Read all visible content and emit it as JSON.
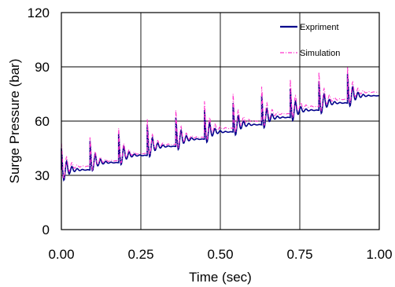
{
  "chart_data": {
    "type": "line",
    "xlabel": "Time (sec)",
    "ylabel": "Surge Pressure (bar)",
    "xlim": [
      0.0,
      1.0
    ],
    "ylim": [
      0,
      120
    ],
    "x_ticks": [
      "0.00",
      "0.25",
      "0.50",
      "0.75",
      "1.00"
    ],
    "y_ticks": [
      "0",
      "30",
      "60",
      "90",
      "120"
    ],
    "grid": true,
    "legend_position": "top-right",
    "series": [
      {
        "name": "Expriment",
        "color": "#00008b",
        "style": "solid",
        "steps": [
          {
            "t": 0.0,
            "steady": 33,
            "peak": 45,
            "trough": 24
          },
          {
            "t": 0.09,
            "steady": 37,
            "peak": 49,
            "trough": 30
          },
          {
            "t": 0.18,
            "steady": 41,
            "peak": 53,
            "trough": 33
          },
          {
            "t": 0.27,
            "steady": 46,
            "peak": 58,
            "trough": 37
          },
          {
            "t": 0.36,
            "steady": 50,
            "peak": 62,
            "trough": 41
          },
          {
            "t": 0.45,
            "steady": 54,
            "peak": 66,
            "trough": 45
          },
          {
            "t": 0.54,
            "steady": 58,
            "peak": 70,
            "trough": 49
          },
          {
            "t": 0.63,
            "steady": 62,
            "peak": 74,
            "trough": 53
          },
          {
            "t": 0.72,
            "steady": 66,
            "peak": 78,
            "trough": 57
          },
          {
            "t": 0.81,
            "steady": 70,
            "peak": 82,
            "trough": 61
          },
          {
            "t": 0.9,
            "steady": 74,
            "peak": 86,
            "trough": 65
          }
        ]
      },
      {
        "name": "Simulation",
        "color": "#ff33cc",
        "style": "dash-dot",
        "steps": [
          {
            "t": 0.0,
            "steady": 35,
            "peak": 48,
            "trough": 24
          },
          {
            "t": 0.09,
            "steady": 38,
            "peak": 51,
            "trough": 30
          },
          {
            "t": 0.18,
            "steady": 42,
            "peak": 56,
            "trough": 34
          },
          {
            "t": 0.27,
            "steady": 47,
            "peak": 61,
            "trough": 38
          },
          {
            "t": 0.36,
            "steady": 51,
            "peak": 66,
            "trough": 42
          },
          {
            "t": 0.45,
            "steady": 56,
            "peak": 71,
            "trough": 46
          },
          {
            "t": 0.54,
            "steady": 60,
            "peak": 75,
            "trough": 50
          },
          {
            "t": 0.63,
            "steady": 64,
            "peak": 79,
            "trough": 54
          },
          {
            "t": 0.72,
            "steady": 68,
            "peak": 83,
            "trough": 58
          },
          {
            "t": 0.81,
            "steady": 72,
            "peak": 87,
            "trough": 62
          },
          {
            "t": 0.9,
            "steady": 76,
            "peak": 90,
            "trough": 66
          }
        ]
      }
    ]
  }
}
